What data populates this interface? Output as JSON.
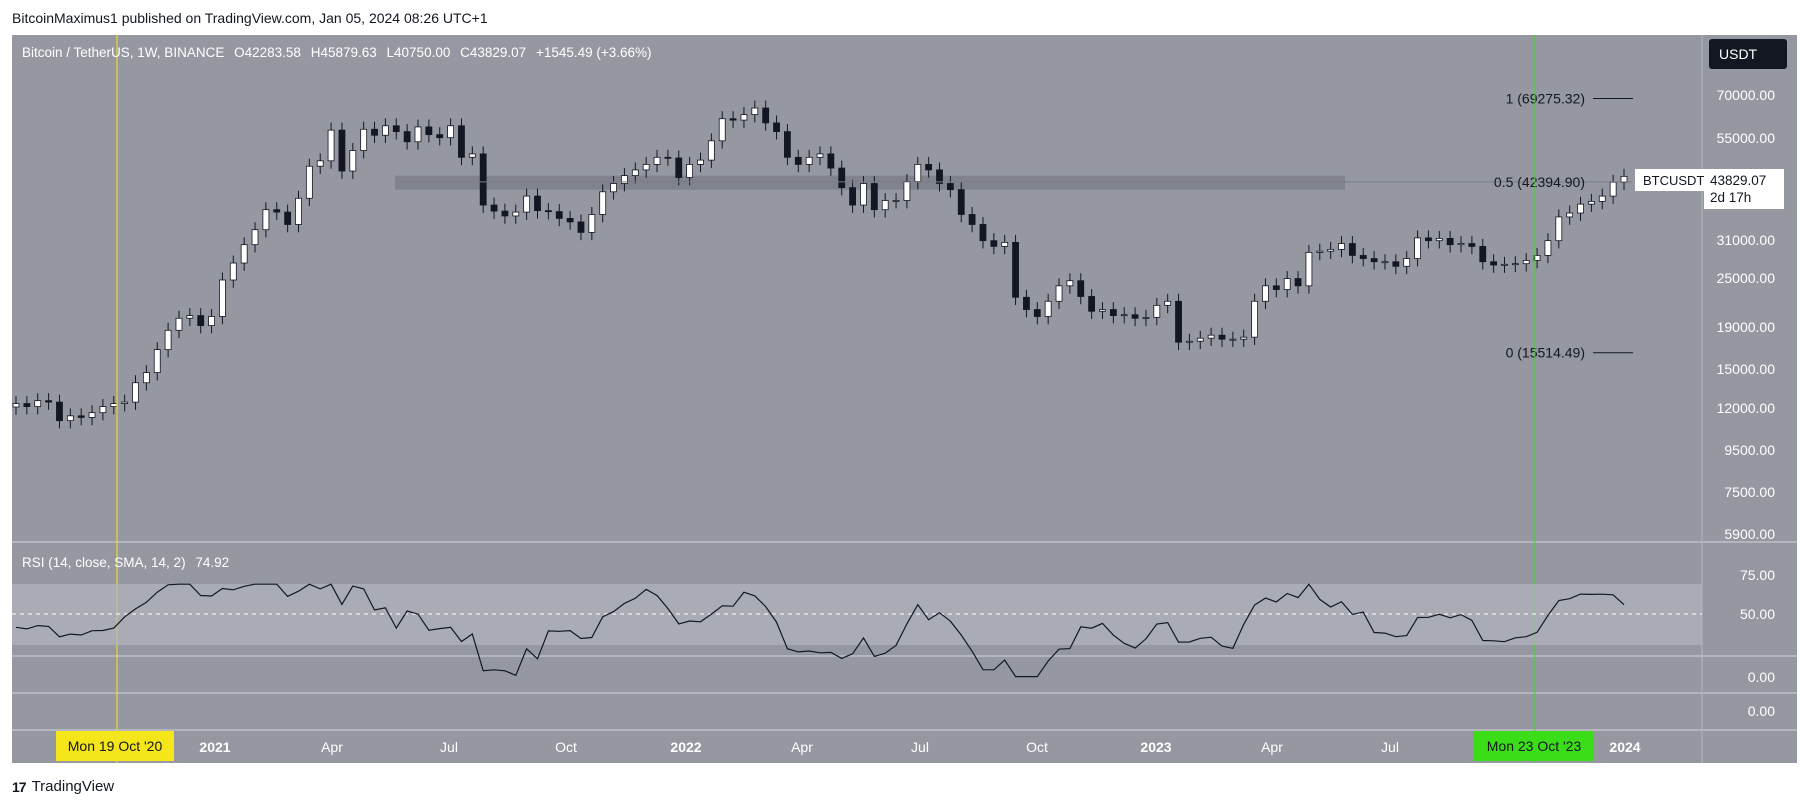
{
  "header": {
    "published_line": "BitcoinMaximus1 published on TradingView.com, Jan 05, 2024 08:26 UTC+1"
  },
  "footer": {
    "logo_mark": "17",
    "brand": "TradingView"
  },
  "currency_button": "USDT",
  "legend": {
    "symbol": "Bitcoin / TetherUS, 1W, BINANCE",
    "open_label": "O",
    "open": "42283.58",
    "high_label": "H",
    "high": "45879.63",
    "low_label": "L",
    "low": "40750.00",
    "close_label": "C",
    "close": "43829.07",
    "change": "+1545.49 (+3.66%)"
  },
  "rsi_legend": {
    "label": "RSI (14, close, SMA, 14, 2)",
    "value": "74.92"
  },
  "last_price_badge": {
    "symbol": "BTCUSDT",
    "price": "43829.07",
    "countdown": "2d 17h"
  },
  "markers": {
    "yellow_date": "Mon 19 Oct '20",
    "green_date": "Mon 23 Oct '23"
  },
  "colors": {
    "pane_bg": "#9598a1",
    "up_candle": "#ffffff",
    "down_candle": "#131722",
    "yellow_line": "#f5e61b",
    "green_line": "#3bdc18",
    "rsi_band": "#b2b5be"
  },
  "chart_data": {
    "type": "candlestick",
    "price_axis": {
      "scale": "log",
      "ticks": [
        "70000.00",
        "55000.00",
        "43829.07",
        "31000.00",
        "25000.00",
        "19000.00",
        "15000.00",
        "12000.00",
        "9500.00",
        "7500.00",
        "5900.00"
      ]
    },
    "rsi_axis": {
      "ticks": [
        "75.00",
        "50.00",
        "0.00",
        "0.00"
      ]
    },
    "time_axis": {
      "ticks": [
        "2021",
        "Apr",
        "Jul",
        "Oct",
        "2022",
        "Apr",
        "Jul",
        "Oct",
        "2023",
        "Apr",
        "Jul",
        " 2024"
      ]
    },
    "fib_levels": [
      {
        "label": "1 (69275.32)",
        "price": 69275.32
      },
      {
        "label": "0.5 (42394.90)",
        "price": 42394.9
      },
      {
        "label": "0 (15514.49)",
        "price": 15514.49
      }
    ],
    "resistance_zone": {
      "low": 40500,
      "high": 44000
    },
    "vertical_markers": [
      {
        "date": "2020-10-19",
        "label": "Mon 19 Oct '20",
        "color": "yellow"
      },
      {
        "date": "2023-10-23",
        "label": "Mon 23 Oct '23",
        "color": "green"
      }
    ],
    "weekly_closes": [
      11500,
      11300,
      11700,
      11600,
      10400,
      10700,
      10600,
      10900,
      11300,
      11500,
      11600,
      13000,
      13800,
      15800,
      17700,
      19000,
      19300,
      18200,
      19200,
      23800,
      26300,
      29300,
      32000,
      36000,
      35500,
      33000,
      38500,
      46500,
      48000,
      57500,
      45200,
      51000,
      57800,
      55800,
      59000,
      57000,
      53700,
      58600,
      56000,
      55000,
      59000,
      49000,
      50000,
      37000,
      35700,
      34700,
      35500,
      39000,
      35800,
      35600,
      34200,
      33500,
      31500,
      35000,
      40000,
      42000,
      44000,
      45500,
      47000,
      49000,
      48800,
      43500,
      47000,
      48200,
      54000,
      61500,
      61000,
      63000,
      65500,
      60000,
      57000,
      49000,
      47000,
      49000,
      50000,
      46000,
      41000,
      37000,
      42000,
      36000,
      38000,
      38000,
      42500,
      47000,
      45500,
      42000,
      40500,
      35000,
      33000,
      30000,
      29000,
      29700,
      21500,
      20000,
      19200,
      21000,
      23000,
      23700,
      21600,
      19800,
      20000,
      19300,
      19400,
      19000,
      19100,
      20500,
      21000,
      16500,
      16600,
      16900,
      17200,
      16800,
      16800,
      17000,
      21000,
      23000,
      22500,
      24000,
      23000,
      28000,
      28200,
      28500,
      29500,
      27500,
      27000,
      26500,
      26500,
      25800,
      27000,
      30500,
      30000,
      30400,
      29300,
      29500,
      29000,
      26500,
      26000,
      26100,
      26200,
      26700,
      27500,
      30000,
      34500,
      35300,
      37200,
      37800,
      39000,
      42300,
      43800
    ]
  }
}
